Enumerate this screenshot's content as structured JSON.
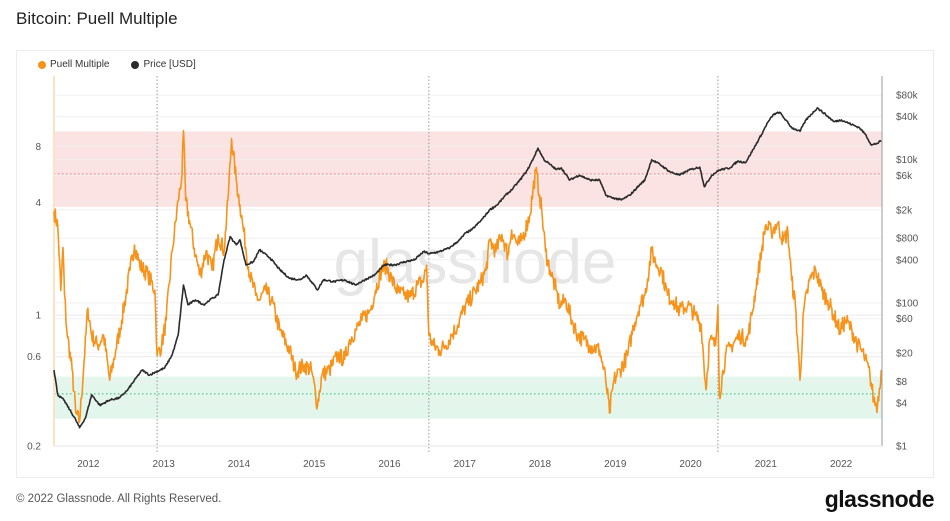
{
  "title": "Bitcoin: Puell Multiple",
  "footer": "© 2022 Glassnode. All Rights Reserved.",
  "logo_text": "glassnode",
  "watermark": "glassnode",
  "chart_data": {
    "type": "line",
    "title": "Bitcoin: Puell Multiple",
    "legend": [
      {
        "name": "Puell Multiple",
        "color": "#f7931a"
      },
      {
        "name": "Price [USD]",
        "color": "#2b2b2b"
      }
    ],
    "legend_position": "top-left",
    "x_range": [
      2011.55,
      2022.55
    ],
    "x_ticks": [
      "2012",
      "2013",
      "2014",
      "2015",
      "2016",
      "2017",
      "2018",
      "2019",
      "2020",
      "2021",
      "2022"
    ],
    "y_left": {
      "scale": "log",
      "range": [
        0.2,
        19
      ],
      "ticks": [
        {
          "v": 0.2,
          "label": "0.2"
        },
        {
          "v": 0.6,
          "label": "0.6"
        },
        {
          "v": 1,
          "label": "1"
        },
        {
          "v": 4,
          "label": "4"
        },
        {
          "v": 8,
          "label": "8"
        }
      ]
    },
    "y_right": {
      "scale": "log",
      "range": [
        1,
        148000
      ],
      "ticks": [
        {
          "v": 1,
          "label": "$1"
        },
        {
          "v": 4,
          "label": "$4"
        },
        {
          "v": 8,
          "label": "$8"
        },
        {
          "v": 20,
          "label": "$20"
        },
        {
          "v": 60,
          "label": "$60"
        },
        {
          "v": 100,
          "label": "$100"
        },
        {
          "v": 400,
          "label": "$400"
        },
        {
          "v": 800,
          "label": "$800"
        },
        {
          "v": 2000,
          "label": "$2k"
        },
        {
          "v": 6000,
          "label": "$6k"
        },
        {
          "v": 10000,
          "label": "$10k"
        },
        {
          "v": 40000,
          "label": "$40k"
        },
        {
          "v": 80000,
          "label": "$80k"
        }
      ]
    },
    "grid": true,
    "bands": [
      {
        "name": "high",
        "range": [
          3.8,
          9.6
        ],
        "line": 5.7,
        "color": "#fbe3e3",
        "line_color": "#ef7b7b"
      },
      {
        "name": "low",
        "range": [
          0.28,
          0.47
        ],
        "line": 0.38,
        "color": "#e3f6ec",
        "line_color": "#2bbf73"
      }
    ],
    "vertical_markers": [
      2012.92,
      2016.53,
      2020.37
    ],
    "series": [
      {
        "name": "Puell Multiple",
        "axis": "left",
        "color": "#f7931a",
        "points": [
          [
            2011.55,
            3.6
          ],
          [
            2011.6,
            3.0
          ],
          [
            2011.64,
            1.36
          ],
          [
            2011.67,
            2.3
          ],
          [
            2011.69,
            1.3
          ],
          [
            2011.72,
            0.83
          ],
          [
            2011.79,
            0.51
          ],
          [
            2011.84,
            0.3
          ],
          [
            2011.89,
            0.27
          ],
          [
            2011.95,
            0.57
          ],
          [
            2012.0,
            1.09
          ],
          [
            2012.05,
            0.78
          ],
          [
            2012.13,
            0.69
          ],
          [
            2012.21,
            0.78
          ],
          [
            2012.29,
            0.45
          ],
          [
            2012.37,
            0.65
          ],
          [
            2012.45,
            0.94
          ],
          [
            2012.56,
            1.74
          ],
          [
            2012.62,
            2.37
          ],
          [
            2012.69,
            1.85
          ],
          [
            2012.8,
            1.64
          ],
          [
            2012.89,
            1.36
          ],
          [
            2012.92,
            0.61
          ],
          [
            2012.98,
            0.69
          ],
          [
            2013.04,
            0.94
          ],
          [
            2013.12,
            2.2
          ],
          [
            2013.2,
            4.1
          ],
          [
            2013.25,
            5.6
          ],
          [
            2013.27,
            9.7
          ],
          [
            2013.3,
            4.1
          ],
          [
            2013.35,
            3.2
          ],
          [
            2013.43,
            2.1
          ],
          [
            2013.49,
            1.64
          ],
          [
            2013.57,
            2.2
          ],
          [
            2013.65,
            1.74
          ],
          [
            2013.73,
            2.7
          ],
          [
            2013.81,
            2.2
          ],
          [
            2013.86,
            4.1
          ],
          [
            2013.91,
            8.8
          ],
          [
            2013.97,
            5.3
          ],
          [
            2014.02,
            3.9
          ],
          [
            2014.07,
            2.8
          ],
          [
            2014.15,
            1.64
          ],
          [
            2014.23,
            1.28
          ],
          [
            2014.28,
            1.2
          ],
          [
            2014.36,
            1.36
          ],
          [
            2014.44,
            1.2
          ],
          [
            2014.55,
            0.83
          ],
          [
            2014.68,
            0.65
          ],
          [
            2014.76,
            0.5
          ],
          [
            2014.87,
            0.54
          ],
          [
            2014.97,
            0.51
          ],
          [
            2015.05,
            0.33
          ],
          [
            2015.11,
            0.48
          ],
          [
            2015.21,
            0.51
          ],
          [
            2015.32,
            0.61
          ],
          [
            2015.41,
            0.58
          ],
          [
            2015.48,
            0.74
          ],
          [
            2015.56,
            0.83
          ],
          [
            2015.64,
            0.94
          ],
          [
            2015.75,
            1.06
          ],
          [
            2015.82,
            1.36
          ],
          [
            2015.9,
            1.74
          ],
          [
            2015.96,
            1.85
          ],
          [
            2016.04,
            1.54
          ],
          [
            2016.12,
            1.33
          ],
          [
            2016.2,
            1.28
          ],
          [
            2016.28,
            1.25
          ],
          [
            2016.38,
            1.45
          ],
          [
            2016.46,
            1.54
          ],
          [
            2016.5,
            1.85
          ],
          [
            2016.53,
            0.78
          ],
          [
            2016.59,
            0.69
          ],
          [
            2016.67,
            0.65
          ],
          [
            2016.75,
            0.69
          ],
          [
            2016.83,
            0.78
          ],
          [
            2016.91,
            0.88
          ],
          [
            2016.99,
            1.06
          ],
          [
            2017.07,
            1.2
          ],
          [
            2017.15,
            1.36
          ],
          [
            2017.21,
            1.48
          ],
          [
            2017.29,
            1.74
          ],
          [
            2017.34,
            2.5
          ],
          [
            2017.42,
            2.2
          ],
          [
            2017.5,
            2.7
          ],
          [
            2017.58,
            2.1
          ],
          [
            2017.63,
            2.85
          ],
          [
            2017.71,
            2.37
          ],
          [
            2017.76,
            2.5
          ],
          [
            2017.87,
            3.4
          ],
          [
            2017.95,
            5.96
          ],
          [
            2018.0,
            4.4
          ],
          [
            2018.03,
            3.6
          ],
          [
            2018.08,
            2.2
          ],
          [
            2018.14,
            1.74
          ],
          [
            2018.22,
            1.36
          ],
          [
            2018.27,
            1.13
          ],
          [
            2018.35,
            1.2
          ],
          [
            2018.43,
            0.94
          ],
          [
            2018.51,
            0.78
          ],
          [
            2018.59,
            0.74
          ],
          [
            2018.67,
            0.69
          ],
          [
            2018.8,
            0.65
          ],
          [
            2018.88,
            0.45
          ],
          [
            2018.93,
            0.3
          ],
          [
            2018.99,
            0.45
          ],
          [
            2019.07,
            0.51
          ],
          [
            2019.17,
            0.61
          ],
          [
            2019.25,
            0.88
          ],
          [
            2019.33,
            1.13
          ],
          [
            2019.4,
            1.28
          ],
          [
            2019.49,
            2.2
          ],
          [
            2019.54,
            1.92
          ],
          [
            2019.62,
            1.74
          ],
          [
            2019.7,
            1.28
          ],
          [
            2019.78,
            1.2
          ],
          [
            2019.86,
            1.06
          ],
          [
            2019.97,
            1.13
          ],
          [
            2020.07,
            1.0
          ],
          [
            2020.15,
            0.88
          ],
          [
            2020.21,
            0.4
          ],
          [
            2020.26,
            0.74
          ],
          [
            2020.34,
            0.69
          ],
          [
            2020.37,
            1.13
          ],
          [
            2020.39,
            0.37
          ],
          [
            2020.47,
            0.61
          ],
          [
            2020.55,
            0.69
          ],
          [
            2020.66,
            0.78
          ],
          [
            2020.76,
            0.74
          ],
          [
            2020.82,
            1.0
          ],
          [
            2020.87,
            1.36
          ],
          [
            2020.95,
            2.2
          ],
          [
            2021.0,
            3.0
          ],
          [
            2021.08,
            2.8
          ],
          [
            2021.16,
            3.1
          ],
          [
            2021.24,
            2.5
          ],
          [
            2021.3,
            2.8
          ],
          [
            2021.35,
            1.54
          ],
          [
            2021.4,
            1.13
          ],
          [
            2021.46,
            0.45
          ],
          [
            2021.51,
            1.06
          ],
          [
            2021.59,
            1.54
          ],
          [
            2021.67,
            1.74
          ],
          [
            2021.75,
            1.36
          ],
          [
            2021.83,
            1.2
          ],
          [
            2021.91,
            1.0
          ],
          [
            2021.99,
            0.83
          ],
          [
            2022.07,
            0.94
          ],
          [
            2022.15,
            0.83
          ],
          [
            2022.23,
            0.69
          ],
          [
            2022.31,
            0.61
          ],
          [
            2022.39,
            0.48
          ],
          [
            2022.44,
            0.35
          ],
          [
            2022.49,
            0.33
          ],
          [
            2022.54,
            0.51
          ]
        ]
      },
      {
        "name": "Price [USD]",
        "axis": "right",
        "color": "#2b2b2b",
        "points": [
          [
            2011.55,
            11.5
          ],
          [
            2011.6,
            5.2
          ],
          [
            2011.68,
            4.4
          ],
          [
            2011.76,
            3.2
          ],
          [
            2011.84,
            2.3
          ],
          [
            2011.89,
            1.8
          ],
          [
            2011.97,
            2.5
          ],
          [
            2012.05,
            5.2
          ],
          [
            2012.16,
            3.7
          ],
          [
            2012.29,
            4.4
          ],
          [
            2012.42,
            4.7
          ],
          [
            2012.53,
            6.1
          ],
          [
            2012.64,
            8.9
          ],
          [
            2012.72,
            11.5
          ],
          [
            2012.82,
            9.8
          ],
          [
            2012.9,
            10.8
          ],
          [
            2013.02,
            12.3
          ],
          [
            2013.12,
            18.8
          ],
          [
            2013.2,
            35.7
          ],
          [
            2013.27,
            178
          ],
          [
            2013.33,
            94
          ],
          [
            2013.43,
            110
          ],
          [
            2013.54,
            94
          ],
          [
            2013.62,
            110
          ],
          [
            2013.73,
            129
          ],
          [
            2013.81,
            400
          ],
          [
            2013.89,
            840
          ],
          [
            2013.97,
            650
          ],
          [
            2014.02,
            760
          ],
          [
            2014.1,
            340
          ],
          [
            2014.2,
            375
          ],
          [
            2014.28,
            550
          ],
          [
            2014.42,
            425
          ],
          [
            2014.55,
            290
          ],
          [
            2014.68,
            220
          ],
          [
            2014.82,
            210
          ],
          [
            2014.9,
            245
          ],
          [
            2014.97,
            198
          ],
          [
            2015.05,
            152
          ],
          [
            2015.13,
            210
          ],
          [
            2015.27,
            198
          ],
          [
            2015.41,
            210
          ],
          [
            2015.55,
            178
          ],
          [
            2015.68,
            210
          ],
          [
            2015.81,
            245
          ],
          [
            2015.94,
            340
          ],
          [
            2016.08,
            340
          ],
          [
            2016.21,
            375
          ],
          [
            2016.34,
            400
          ],
          [
            2016.46,
            520
          ],
          [
            2016.54,
            485
          ],
          [
            2016.67,
            520
          ],
          [
            2016.81,
            590
          ],
          [
            2016.94,
            760
          ],
          [
            2017.02,
            950
          ],
          [
            2017.1,
            1050
          ],
          [
            2017.23,
            1440
          ],
          [
            2017.34,
            2000
          ],
          [
            2017.44,
            2350
          ],
          [
            2017.55,
            3200
          ],
          [
            2017.63,
            3800
          ],
          [
            2017.74,
            5200
          ],
          [
            2017.84,
            7200
          ],
          [
            2017.92,
            10500
          ],
          [
            2017.98,
            14500
          ],
          [
            2018.06,
            10000
          ],
          [
            2018.14,
            8600
          ],
          [
            2018.22,
            7300
          ],
          [
            2018.29,
            7700
          ],
          [
            2018.4,
            5200
          ],
          [
            2018.53,
            6100
          ],
          [
            2018.67,
            5200
          ],
          [
            2018.8,
            5200
          ],
          [
            2018.88,
            3200
          ],
          [
            2018.96,
            2950
          ],
          [
            2019.09,
            2750
          ],
          [
            2019.2,
            3200
          ],
          [
            2019.33,
            4450
          ],
          [
            2019.4,
            5200
          ],
          [
            2019.49,
            10000
          ],
          [
            2019.6,
            8600
          ],
          [
            2019.73,
            6800
          ],
          [
            2019.86,
            6100
          ],
          [
            2019.99,
            7200
          ],
          [
            2020.13,
            7900
          ],
          [
            2020.19,
            4200
          ],
          [
            2020.29,
            6100
          ],
          [
            2020.39,
            7200
          ],
          [
            2020.53,
            7700
          ],
          [
            2020.63,
            9500
          ],
          [
            2020.74,
            9200
          ],
          [
            2020.84,
            14000
          ],
          [
            2020.95,
            22600
          ],
          [
            2021.03,
            33000
          ],
          [
            2021.11,
            43000
          ],
          [
            2021.19,
            46000
          ],
          [
            2021.27,
            36000
          ],
          [
            2021.35,
            28000
          ],
          [
            2021.46,
            25000
          ],
          [
            2021.54,
            36000
          ],
          [
            2021.61,
            43000
          ],
          [
            2021.69,
            53000
          ],
          [
            2021.8,
            43000
          ],
          [
            2021.91,
            34000
          ],
          [
            2022.01,
            36000
          ],
          [
            2022.15,
            31000
          ],
          [
            2022.25,
            28000
          ],
          [
            2022.33,
            22600
          ],
          [
            2022.41,
            16000
          ],
          [
            2022.49,
            17000
          ],
          [
            2022.54,
            18500
          ]
        ]
      }
    ]
  }
}
